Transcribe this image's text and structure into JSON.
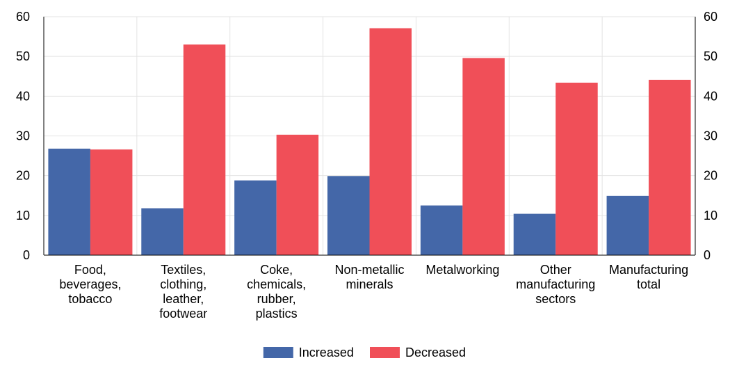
{
  "chart_data": {
    "type": "bar",
    "categories": [
      [
        "Food,",
        "beverages,",
        "tobacco"
      ],
      [
        "Textiles,",
        "clothing,",
        "leather,",
        "footwear"
      ],
      [
        "Coke,",
        "chemicals,",
        "rubber,",
        "plastics"
      ],
      [
        "Non-metallic",
        "minerals"
      ],
      [
        "Metalworking"
      ],
      [
        "Other",
        "manufacturing",
        "sectors"
      ],
      [
        "Manufacturing",
        "total"
      ]
    ],
    "series": [
      {
        "name": "Increased",
        "color": "#4467a8",
        "values": [
          26.8,
          11.8,
          18.8,
          19.9,
          12.5,
          10.4,
          14.9
        ]
      },
      {
        "name": "Decreased",
        "color": "#f04f58",
        "values": [
          26.6,
          53.0,
          30.3,
          57.1,
          49.6,
          43.4,
          44.1
        ]
      }
    ],
    "ylim": [
      0,
      60
    ],
    "yticks": [
      0,
      10,
      20,
      30,
      40,
      50,
      60
    ],
    "right_axis_mirrors_left": true,
    "grid": true,
    "legend_position": "bottom-center"
  }
}
